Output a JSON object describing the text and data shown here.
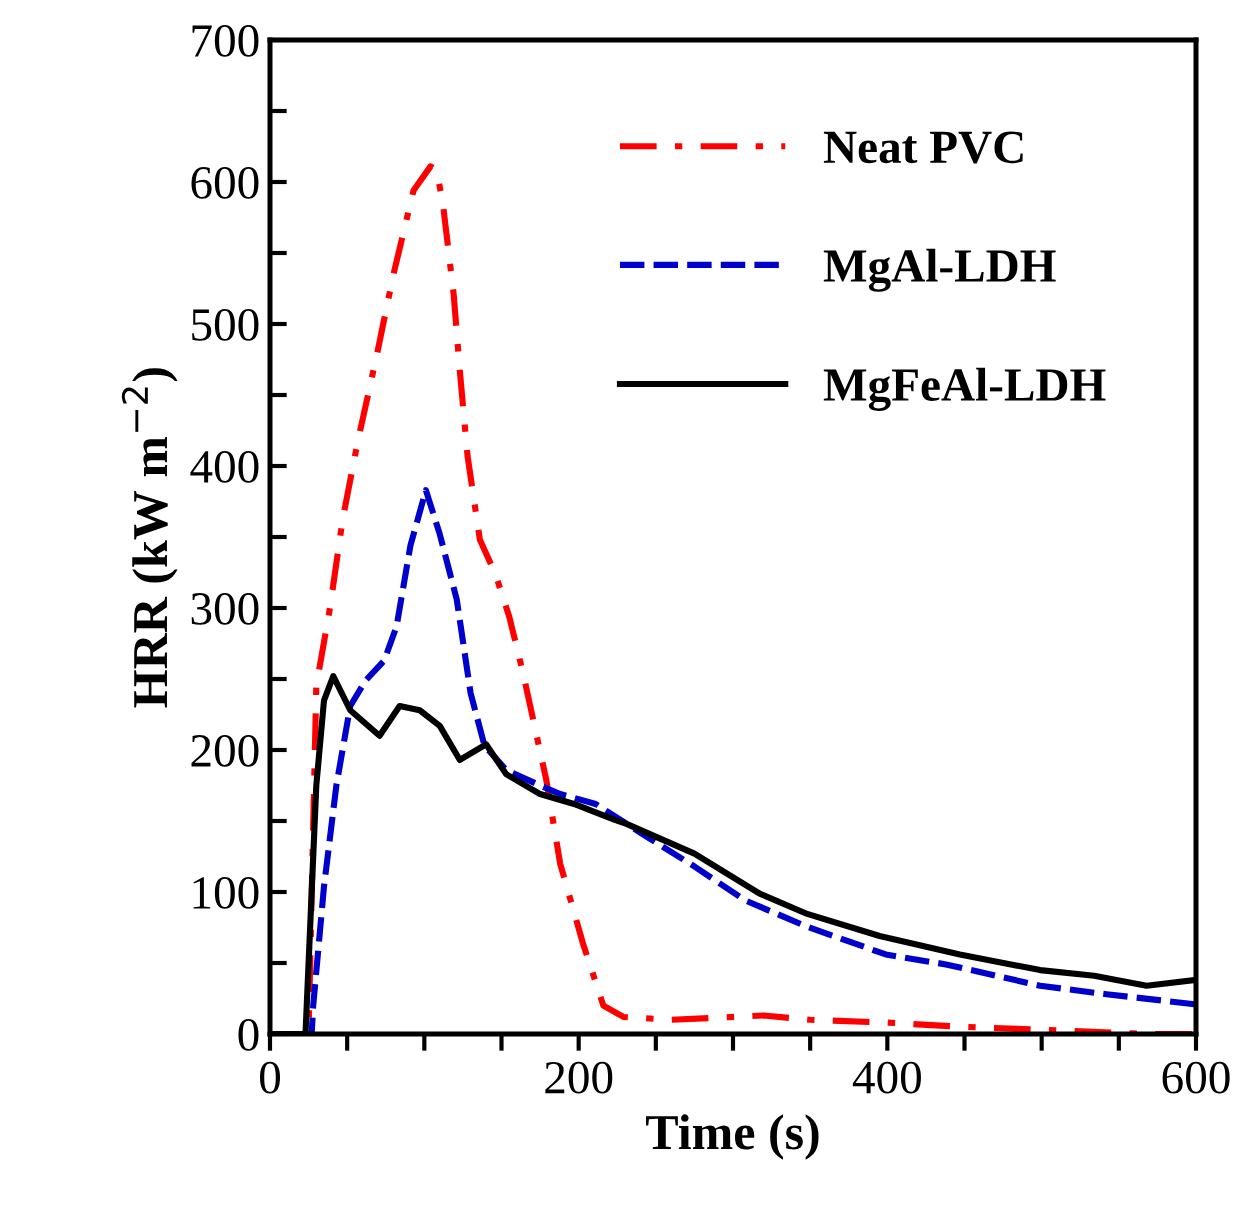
{
  "chart_data": {
    "type": "line",
    "xlabel": "Time (s)",
    "ylabel": "HRR (kW m$^{−2}$)",
    "xlim": [
      0,
      600
    ],
    "ylim": [
      0,
      700
    ],
    "xticks": [
      0,
      {
        "value": 50,
        "label": null
      },
      {
        "value": 100,
        "label": null
      },
      {
        "value": 150,
        "label": null
      },
      200,
      {
        "value": 250,
        "label": null
      },
      {
        "value": 300,
        "label": null
      },
      {
        "value": 350,
        "label": null
      },
      400,
      {
        "value": 450,
        "label": null
      },
      {
        "value": 500,
        "label": null
      },
      {
        "value": 550,
        "label": null
      },
      600
    ],
    "yticks": [
      0,
      {
        "value": 50,
        "label": null
      },
      100,
      {
        "value": 150,
        "label": null
      },
      200,
      {
        "value": 250,
        "label": null
      },
      300,
      {
        "value": 350,
        "label": null
      },
      400,
      {
        "value": 450,
        "label": null
      },
      500,
      {
        "value": 550,
        "label": null
      },
      600,
      {
        "value": 650,
        "label": null
      },
      700
    ],
    "grid": false,
    "legend": "top right",
    "marker": "none",
    "series": [
      {
        "name": "Neat PVC",
        "color": "#ff0000",
        "line_style": "dashdot",
        "x": [
          0,
          25,
          30,
          39,
          47,
          57,
          69,
          80,
          93,
          104,
          108,
          112,
          119,
          123,
          128,
          136,
          146,
          155,
          164,
          179,
          188,
          203,
          216,
          229,
          260,
          320,
          350,
          400,
          450,
          500,
          570,
          600
        ],
        "values": [
          0,
          0,
          245,
          301,
          362,
          418,
          477,
          535,
          594,
          611,
          608,
          585,
          521,
          467,
          407,
          348,
          324,
          294,
          254,
          179,
          120,
          63,
          20,
          12,
          10,
          13,
          10,
          8,
          5,
          3,
          0,
          0
        ]
      },
      {
        "name": "MgAl-LDH",
        "color": "#0000cc",
        "line_style": "dashed",
        "x": [
          0,
          27,
          28,
          35,
          43,
          52,
          62,
          74,
          82,
          91,
          101,
          110,
          121,
          130,
          139,
          153,
          175,
          188,
          211,
          244,
          275,
          308,
          347,
          399,
          438,
          499,
          542,
          599
        ],
        "values": [
          0,
          0,
          20,
          104,
          175,
          231,
          249,
          263,
          287,
          344,
          383,
          352,
          306,
          240,
          203,
          186,
          175,
          169,
          162,
          139,
          118,
          94,
          76,
          56,
          49,
          34,
          28,
          21
        ]
      },
      {
        "name": "MgFeAl-LDH",
        "color": "#000000",
        "line_style": "solid",
        "x": [
          0,
          23,
          30,
          35,
          41,
          52,
          71,
          84,
          97,
          110,
          123,
          140,
          153,
          175,
          197,
          223,
          231,
          275,
          317,
          347,
          395,
          447,
          499,
          534,
          568,
          599
        ],
        "values": [
          0,
          0,
          175,
          235,
          252,
          228,
          210,
          231,
          228,
          217,
          193,
          204,
          183,
          169,
          162,
          151,
          148,
          127,
          99,
          85,
          69,
          56,
          45,
          41,
          34,
          38
        ]
      }
    ]
  }
}
